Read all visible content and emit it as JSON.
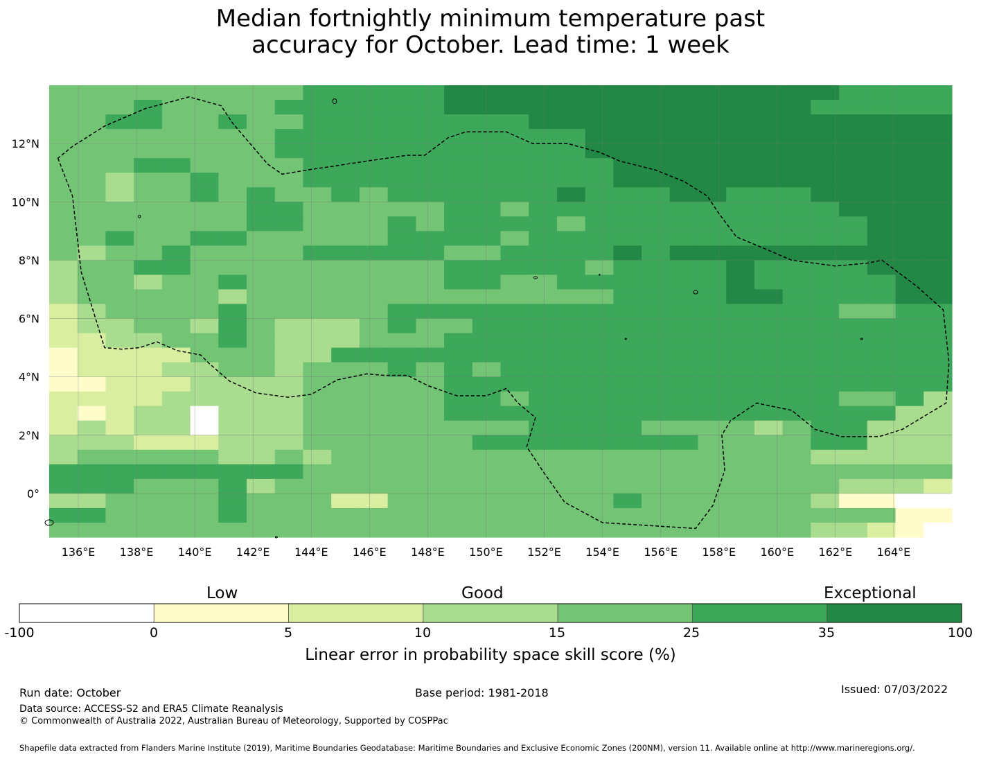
{
  "title": {
    "line1": "Median fortnightly minimum temperature past",
    "line2": "accuracy for October. Lead time: 1 week"
  },
  "map": {
    "lon_range": [
      135,
      166
    ],
    "lat_range": [
      -1.5,
      14
    ],
    "lon_ticks": [
      "136°E",
      "138°E",
      "140°E",
      "142°E",
      "144°E",
      "146°E",
      "148°E",
      "150°E",
      "152°E",
      "154°E",
      "156°E",
      "158°E",
      "160°E",
      "162°E",
      "164°E"
    ],
    "lat_ticks": [
      "12°N",
      "10°N",
      "8°N",
      "6°N",
      "4°N",
      "2°N",
      "0°"
    ],
    "grid": true,
    "boundary_style": "dashed",
    "cell_category_rows_north_to_south": [
      "44444444455555666666666666665555",
      "44454444555555666666666666655555",
      "44554454455555555666666666666666",
      "44444444555555555556666666666666",
      "44444444555555555556666666666666",
      "44455444455555555555666666666666",
      "44344544455555555555666666666666",
      "44344545445455555565556655566666",
      "44444445544444554555555555556666",
      "44444445544454555545555555555666",
      "44544554444455554555555555555666",
      "43445444455555445555656666666666",
      "34455444444444555554555565555666",
      "34434454444444554455555565555566",
      "34444434444444444444555566555566",
      "23444454444455555555555555554455",
      "23344354333454455555555555555555",
      "22334454333444555555555555555555",
      "12222444335555555555555555555555",
      "12223344344454545555555555555555",
      "11222333344444555555555555555555",
      "22223333344444554555555555554453",
      "21233033344444555555555555555533",
      "23233033344444444555544443455333",
      "33322233344444455555555444455333",
      "34444433434444444444444444433333",
      "55555555544444444444444444444444",
      "55544453444444444444444444443332",
      "33444454442244444444544444431100",
      "55444454444444444444444444444411",
      "44444444444444444444444444433210"
    ]
  },
  "colorbar": {
    "categories": [
      "Low",
      "Good",
      "Exceptional"
    ],
    "ticks": [
      "-100",
      "0",
      "5",
      "10",
      "15",
      "25",
      "35",
      "100"
    ],
    "colors": [
      "#ffffff",
      "#fefccb",
      "#d9eea0",
      "#a9dc8e",
      "#74c476",
      "#3da75a",
      "#238845"
    ],
    "label": "Linear error in probability space skill score (%)"
  },
  "footer": {
    "run_date": "Run date: October",
    "base_period": "Base period: 1981-2018",
    "issued": "Issued: 07/03/2022",
    "data_source": "Data source: ACCESS-S2 and ERA5 Climate Reanalysis",
    "copyright": "© Commonwealth of Australia 2022, Australian Bureau of Meteorology, Supported by COSPPac",
    "shapefile": "Shapefile data extracted from Flanders Marine Institute (2019), Maritime Boundaries Geodatabase: Maritime Boundaries and Exclusive Economic Zones (200NM), version 11. Available online at http://www.marineregions.org/."
  }
}
